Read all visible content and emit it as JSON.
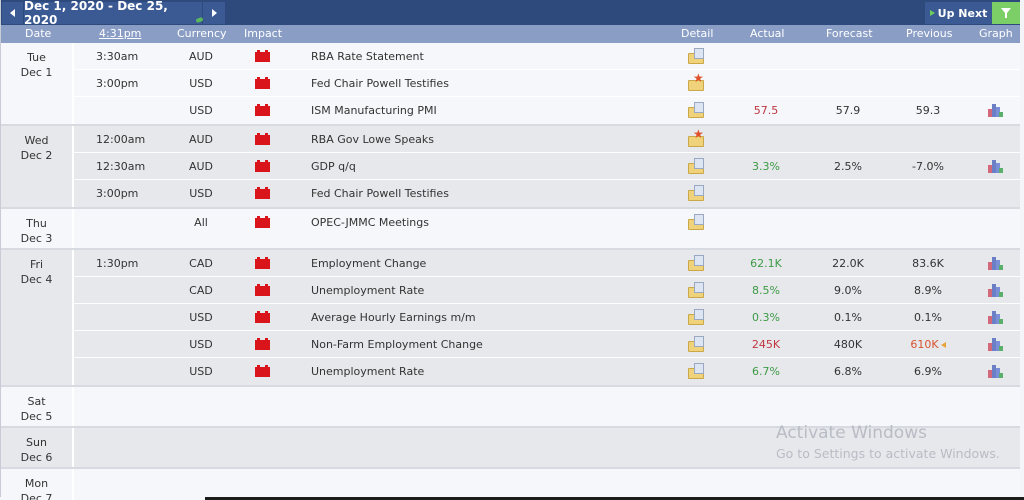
{
  "toolbar": {
    "prev_icon": "◀",
    "next_icon": "▶",
    "date_range": "Dec 1, 2020 - Dec 25, 2020",
    "up_next_label": "Up Next",
    "filter_icon": "filter-icon"
  },
  "header": {
    "date": "Date",
    "time": "4:31pm",
    "currency": "Currency",
    "impact": "Impact",
    "detail": "Detail",
    "actual": "Actual",
    "forecast": "Forecast",
    "previous": "Previous",
    "graph": "Graph"
  },
  "colors": {
    "topbar": "#2e4a7d",
    "header": "#8a9dc4",
    "high_impact": "#d9151b",
    "better": "#3c9a45",
    "worse": "#c0363f",
    "filter": "#7ccf67"
  },
  "days": [
    {
      "weekday": "Tue",
      "date": "Dec 1",
      "events": [
        {
          "time": "3:30am",
          "currency": "AUD",
          "impact": "high",
          "name": "RBA Rate Statement",
          "detail_icon": "folder-icon",
          "actual": "",
          "forecast": "",
          "previous": "",
          "graph": false
        },
        {
          "time": "3:00pm",
          "currency": "USD",
          "impact": "high",
          "name": "Fed Chair Powell Testifies",
          "detail_icon": "folder-star-icon",
          "actual": "",
          "forecast": "",
          "previous": "",
          "graph": false
        },
        {
          "time": "",
          "currency": "USD",
          "impact": "high",
          "name": "ISM Manufacturing PMI",
          "detail_icon": "folder-icon",
          "actual": "57.5",
          "actual_status": "worse",
          "forecast": "57.9",
          "previous": "59.3",
          "graph": true
        }
      ]
    },
    {
      "weekday": "Wed",
      "date": "Dec 2",
      "events": [
        {
          "time": "12:00am",
          "currency": "AUD",
          "impact": "high",
          "name": "RBA Gov Lowe Speaks",
          "detail_icon": "folder-star-icon",
          "actual": "",
          "forecast": "",
          "previous": "",
          "graph": false
        },
        {
          "time": "12:30am",
          "currency": "AUD",
          "impact": "high",
          "name": "GDP q/q",
          "detail_icon": "folder-icon",
          "actual": "3.3%",
          "actual_status": "better",
          "forecast": "2.5%",
          "previous": "-7.0%",
          "graph": true
        },
        {
          "time": "3:00pm",
          "currency": "USD",
          "impact": "high",
          "name": "Fed Chair Powell Testifies",
          "detail_icon": "folder-icon",
          "actual": "",
          "forecast": "",
          "previous": "",
          "graph": false
        }
      ]
    },
    {
      "weekday": "Thu",
      "date": "Dec 3",
      "events": [
        {
          "time": "",
          "currency": "All",
          "impact": "high",
          "name": "OPEC-JMMC Meetings",
          "detail_icon": "folder-icon",
          "actual": "",
          "forecast": "",
          "previous": "",
          "graph": false
        }
      ]
    },
    {
      "weekday": "Fri",
      "date": "Dec 4",
      "events": [
        {
          "time": "1:30pm",
          "currency": "CAD",
          "impact": "high",
          "name": "Employment Change",
          "detail_icon": "folder-icon",
          "actual": "62.1K",
          "actual_status": "better",
          "forecast": "22.0K",
          "previous": "83.6K",
          "graph": true
        },
        {
          "time": "",
          "currency": "CAD",
          "impact": "high",
          "name": "Unemployment Rate",
          "detail_icon": "folder-icon",
          "actual": "8.5%",
          "actual_status": "better",
          "forecast": "9.0%",
          "previous": "8.9%",
          "graph": true
        },
        {
          "time": "",
          "currency": "USD",
          "impact": "high",
          "name": "Average Hourly Earnings m/m",
          "detail_icon": "folder-icon",
          "actual": "0.3%",
          "actual_status": "better",
          "forecast": "0.1%",
          "previous": "0.1%",
          "graph": true
        },
        {
          "time": "",
          "currency": "USD",
          "impact": "high",
          "name": "Non-Farm Employment Change",
          "detail_icon": "folder-icon",
          "actual": "245K",
          "actual_status": "worse",
          "forecast": "480K",
          "previous": "610K",
          "previous_revised": true,
          "graph": true
        },
        {
          "time": "",
          "currency": "USD",
          "impact": "high",
          "name": "Unemployment Rate",
          "detail_icon": "folder-icon",
          "actual": "6.7%",
          "actual_status": "better",
          "forecast": "6.8%",
          "previous": "6.9%",
          "graph": true
        }
      ]
    },
    {
      "weekday": "Sat",
      "date": "Dec 5",
      "events": []
    },
    {
      "weekday": "Sun",
      "date": "Dec 6",
      "events": []
    },
    {
      "weekday": "Mon",
      "date": "Dec 7",
      "events": []
    }
  ],
  "watermark": {
    "title": "Activate Windows",
    "subtitle": "Go to Settings to activate Windows."
  }
}
